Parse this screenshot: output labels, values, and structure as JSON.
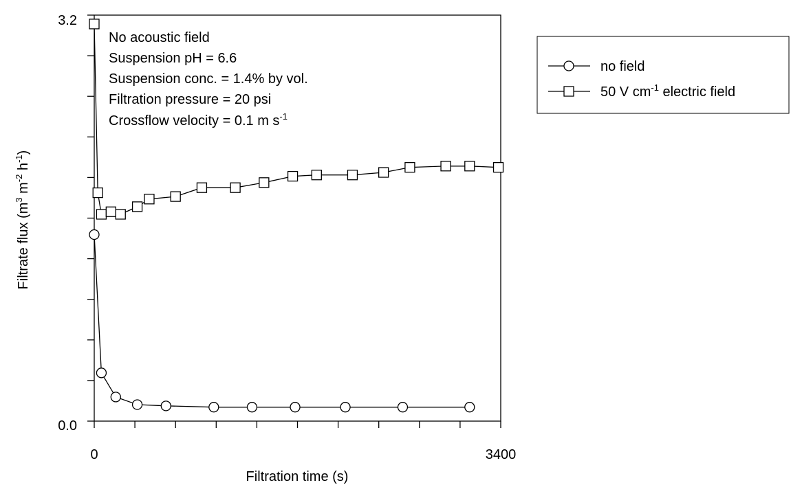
{
  "chart_data": {
    "type": "line",
    "xlabel": "Filtration time (s)",
    "ylabel": {
      "text": "Filtrate flux (m",
      "sup1": "3",
      "mid1": " m",
      "sup2": "-2",
      "mid2": " h",
      "sup3": "-1",
      "end": ")"
    },
    "xlim": [
      0,
      3400
    ],
    "ylim": [
      0.0,
      3.2
    ],
    "x_tick_labels": [
      "0",
      "3400"
    ],
    "y_tick_labels": [
      "0.0",
      "3.2"
    ],
    "grid": false,
    "legend_position": "right",
    "annotations": [
      {
        "text": "No acoustic field"
      },
      {
        "text": "Suspension pH = 6.6"
      },
      {
        "text": "Suspension conc. = 1.4% by vol."
      },
      {
        "text": "Filtration pressure = 20 psi"
      },
      {
        "text": "Crossflow velocity = 0.1 m s",
        "sup": "-1"
      }
    ],
    "series": [
      {
        "name": "no field",
        "marker": "circle",
        "x": [
          0,
          60,
          180,
          360,
          600,
          1000,
          1320,
          1680,
          2100,
          2580,
          3140
        ],
        "y": [
          1.47,
          0.38,
          0.19,
          0.13,
          0.12,
          0.11,
          0.11,
          0.11,
          0.11,
          0.11,
          0.11
        ]
      },
      {
        "name": "50 V cm-1 electric field",
        "legend": {
          "pre": "50 V cm",
          "sup": "-1",
          "post": " electric field"
        },
        "marker": "square",
        "x": [
          0,
          30,
          60,
          140,
          220,
          360,
          460,
          680,
          900,
          1180,
          1420,
          1660,
          1860,
          2160,
          2420,
          2640,
          2940,
          3140,
          3380
        ],
        "y": [
          3.13,
          1.8,
          1.63,
          1.65,
          1.63,
          1.69,
          1.75,
          1.77,
          1.84,
          1.84,
          1.88,
          1.93,
          1.94,
          1.94,
          1.96,
          2.0,
          2.01,
          2.01,
          2.0
        ]
      }
    ]
  }
}
